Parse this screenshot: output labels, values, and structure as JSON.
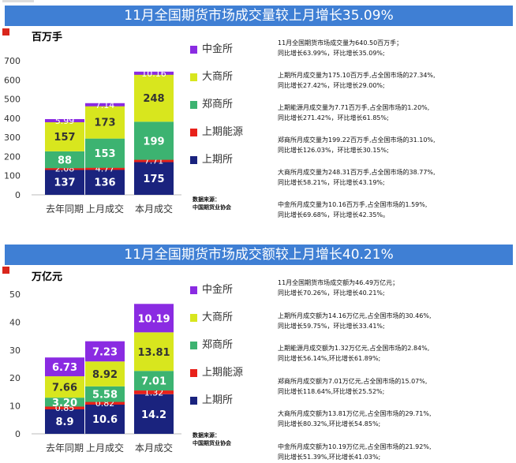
{
  "panels": [
    {
      "title": "11月全国期货市场成交量较上月增长35.09%",
      "unit": "百万手",
      "legend": [
        {
          "label": "中金所",
          "color": "#8a2be2"
        },
        {
          "label": "大商所",
          "color": "#d8e61e"
        },
        {
          "label": "郑商所",
          "color": "#3cb371"
        },
        {
          "label": "上期能源",
          "color": "#e8211a"
        },
        {
          "label": "上期所",
          "color": "#1a237e"
        }
      ],
      "source": [
        "数据来源：",
        "中国期货业协会"
      ],
      "stats": [
        [
          "11月全国期货市场成交量为640.50百万手；",
          "同比增长63.99%，环比增长35.09%;"
        ],
        [
          "上期所月成交量为175.10百万手,占全国市场的27.34%,",
          "同比增长27.42%，环比增长29.00%;"
        ],
        [
          "上期能源月成交量为7.71百万手,占全国市场的1.20%,",
          "同比增长271.42%，环比增长61.85%;"
        ],
        [
          "郑商所月成交量为199.22百万手,占全国市场的31.10%,",
          "同比增长126.03%，环比增长30.15%;"
        ],
        [
          "大商所月成交量为248.31百万手,占全国市场的38.77%,",
          "同比增长58.21%，环比增长43.19%;"
        ],
        [
          "中金所月成交量为10.16百万手,占全国市场的1.59%,",
          "同比增长69.68%，环比增长42.35%。"
        ]
      ]
    },
    {
      "title": "11月全国期货市场成交额较上月增长40.21%",
      "unit": "万亿元",
      "legend": [
        {
          "label": "中金所",
          "color": "#8a2be2"
        },
        {
          "label": "大商所",
          "color": "#d8e61e"
        },
        {
          "label": "郑商所",
          "color": "#3cb371"
        },
        {
          "label": "上期能源",
          "color": "#e8211a"
        },
        {
          "label": "上期所",
          "color": "#1a237e"
        }
      ],
      "source": [
        "数据来源：",
        "中国期货业协会"
      ],
      "stats": [
        [
          "11月全国期货市场成交额为46.49万亿元；",
          "同比增长70.26%，环比增长40.21%;"
        ],
        [
          "上期所月成交额为14.16万亿元,占全国市场的30.46%,",
          "同比增长59.75%，环比增长33.41%;"
        ],
        [
          "上期能源月成交额为1.32万亿元,占全国市场的2.84%,",
          "同比增长56.14%,环比增长61.89%;"
        ],
        [
          "郑商所月成交额为7.01万亿元,占全国市场的15.07%,",
          "同比增长118.64%,环比增长25.52%;"
        ],
        [
          "大商所月成交额为13.81万亿元,占全国市场的29.71%,",
          "同比增长80.32%,环比增长54.85%;"
        ],
        [
          "中金所月成交额为10.19万亿元,占全国市场的21.92%,",
          "同比增长51.39%,环比增长41.03%;"
        ]
      ]
    }
  ],
  "chart_data": [
    {
      "type": "bar",
      "stacked": true,
      "categories": [
        "去年同期",
        "上月成交",
        "本月成交"
      ],
      "ylim": [
        0,
        700
      ],
      "yticks": [
        0,
        100,
        200,
        300,
        400,
        500,
        600,
        700
      ],
      "series": [
        {
          "name": "上期所",
          "color": "#1a237e",
          "values": [
            137,
            136,
            175
          ],
          "labels": [
            "137",
            "136",
            "175"
          ]
        },
        {
          "name": "上期能源",
          "color": "#e8211a",
          "values": [
            2.08,
            4.77,
            7.71
          ],
          "labels": [
            "2.08",
            "4.77",
            "7.71"
          ]
        },
        {
          "name": "郑商所",
          "color": "#3cb371",
          "values": [
            88,
            153,
            199
          ],
          "labels": [
            "88",
            "153",
            "199"
          ]
        },
        {
          "name": "大商所",
          "color": "#d8e61e",
          "values": [
            157,
            173,
            248
          ],
          "labels": [
            "157",
            "173",
            "248"
          ]
        },
        {
          "name": "中金所",
          "color": "#8a2be2",
          "values": [
            5.99,
            7.14,
            10.16
          ],
          "labels": [
            "5.99",
            "7.14",
            "10.16"
          ]
        }
      ]
    },
    {
      "type": "bar",
      "stacked": true,
      "categories": [
        "去年同期",
        "上月成交",
        "本月成交"
      ],
      "ylim": [
        0,
        50
      ],
      "yticks": [
        0,
        10,
        20,
        30,
        40,
        50
      ],
      "series": [
        {
          "name": "上期所",
          "color": "#1a237e",
          "values": [
            8.9,
            10.6,
            14.2
          ],
          "labels": [
            "8.9",
            "10.6",
            "14.2"
          ]
        },
        {
          "name": "上期能源",
          "color": "#e8211a",
          "values": [
            0.85,
            0.82,
            1.32
          ],
          "labels": [
            "0.85",
            "0.82",
            "1.32"
          ]
        },
        {
          "name": "郑商所",
          "color": "#3cb371",
          "values": [
            3.2,
            5.58,
            7.01
          ],
          "labels": [
            "3.20",
            "5.58",
            "7.01"
          ]
        },
        {
          "name": "大商所",
          "color": "#d8e61e",
          "values": [
            7.66,
            8.92,
            13.81
          ],
          "labels": [
            "7.66",
            "8.92",
            "13.81"
          ]
        },
        {
          "name": "中金所",
          "color": "#8a2be2",
          "values": [
            6.73,
            7.23,
            10.19
          ],
          "labels": [
            "6.73",
            "7.23",
            "10.19"
          ]
        }
      ]
    }
  ]
}
